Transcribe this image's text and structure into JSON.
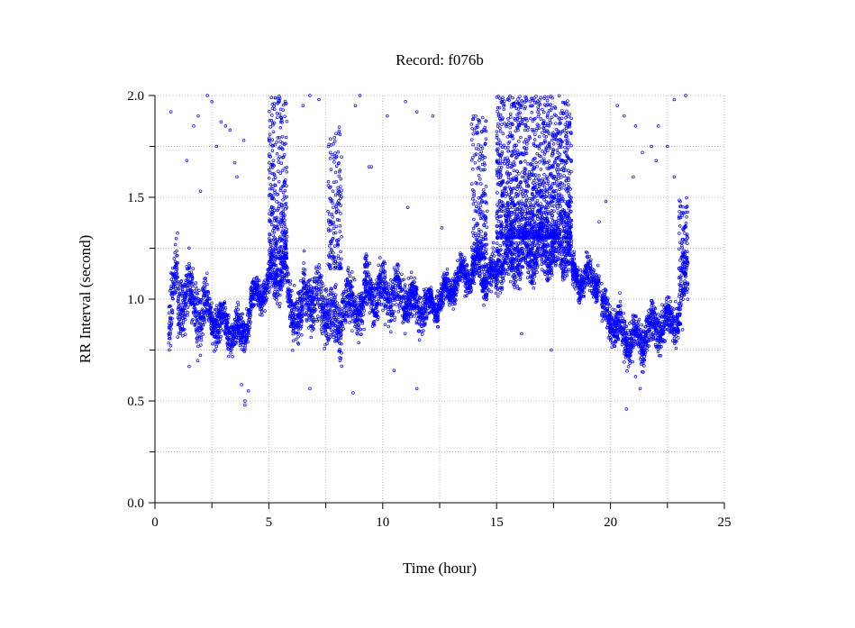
{
  "chart_data": {
    "type": "scatter",
    "title": "Record:  f076b",
    "xlabel": "Time (hour)",
    "ylabel": "RR Interval (second)",
    "xlim": [
      0,
      25
    ],
    "ylim": [
      0.0,
      2.0
    ],
    "x_ticks": [
      "0",
      "5",
      "10",
      "15",
      "20",
      "25"
    ],
    "y_ticks": [
      "0.0",
      "0.5",
      "1.0",
      "1.5",
      "2.0"
    ],
    "grid": true,
    "point_color": "#0000ff",
    "marker": "open-circle",
    "segments": [
      {
        "x": [
          0.6,
          1.0
        ],
        "y": [
          0.88,
          1.15
        ],
        "spread": 0.1
      },
      {
        "x": [
          1.0,
          1.5
        ],
        "y": [
          0.95,
          1.05
        ],
        "spread": 0.12
      },
      {
        "x": [
          1.5,
          2.2
        ],
        "y": [
          1.0,
          0.92
        ],
        "spread": 0.12
      },
      {
        "x": [
          2.2,
          3.0
        ],
        "y": [
          0.95,
          0.85
        ],
        "spread": 0.08
      },
      {
        "x": [
          3.0,
          3.8
        ],
        "y": [
          0.88,
          0.82
        ],
        "spread": 0.07
      },
      {
        "x": [
          3.8,
          4.2
        ],
        "y": [
          0.82,
          0.95
        ],
        "spread": 0.07
      },
      {
        "x": [
          4.2,
          5.0
        ],
        "y": [
          0.98,
          1.08
        ],
        "spread": 0.06
      },
      {
        "x": [
          5.0,
          5.8
        ],
        "y": [
          1.1,
          1.15
        ],
        "spread": 0.08
      },
      {
        "x": [
          5.8,
          6.5
        ],
        "y": [
          1.0,
          0.9
        ],
        "spread": 0.1
      },
      {
        "x": [
          6.5,
          7.5
        ],
        "y": [
          1.05,
          0.95
        ],
        "spread": 0.12
      },
      {
        "x": [
          7.5,
          8.2
        ],
        "y": [
          0.95,
          0.85
        ],
        "spread": 0.12
      },
      {
        "x": [
          8.2,
          9.2
        ],
        "y": [
          1.0,
          0.95
        ],
        "spread": 0.1
      },
      {
        "x": [
          9.2,
          11.0
        ],
        "y": [
          1.05,
          1.0
        ],
        "spread": 0.1
      },
      {
        "x": [
          11.0,
          12.0
        ],
        "y": [
          1.0,
          0.95
        ],
        "spread": 0.08
      },
      {
        "x": [
          12.0,
          13.0
        ],
        "y": [
          0.95,
          1.05
        ],
        "spread": 0.06
      },
      {
        "x": [
          13.0,
          14.0
        ],
        "y": [
          1.08,
          1.15
        ],
        "spread": 0.06
      },
      {
        "x": [
          14.0,
          15.0
        ],
        "y": [
          1.15,
          1.1
        ],
        "spread": 0.08
      },
      {
        "x": [
          15.0,
          18.3
        ],
        "y": [
          1.2,
          1.25
        ],
        "spread": 0.1
      },
      {
        "x": [
          18.3,
          19.5
        ],
        "y": [
          1.1,
          1.1
        ],
        "spread": 0.06
      },
      {
        "x": [
          19.6,
          20.5
        ],
        "y": [
          0.95,
          0.85
        ],
        "spread": 0.08
      },
      {
        "x": [
          20.5,
          21.5
        ],
        "y": [
          0.82,
          0.8
        ],
        "spread": 0.08
      },
      {
        "x": [
          21.5,
          23.0
        ],
        "y": [
          0.85,
          0.9
        ],
        "spread": 0.08
      },
      {
        "x": [
          23.0,
          23.4
        ],
        "y": [
          0.95,
          1.15
        ],
        "spread": 0.12
      }
    ],
    "bursts": [
      {
        "x": [
          5.0,
          5.8
        ],
        "y": [
          1.2,
          2.0
        ],
        "density": 0.9
      },
      {
        "x": [
          7.6,
          8.2
        ],
        "y": [
          1.15,
          1.85
        ],
        "density": 0.6
      },
      {
        "x": [
          13.9,
          14.6
        ],
        "y": [
          1.2,
          1.9
        ],
        "density": 0.7
      },
      {
        "x": [
          15.0,
          18.3
        ],
        "y": [
          1.3,
          2.0
        ],
        "density": 1.0
      },
      {
        "x": [
          23.0,
          23.4
        ],
        "y": [
          1.15,
          1.5
        ],
        "density": 0.4
      }
    ],
    "outliers": [
      {
        "x": 0.7,
        "y": 1.92
      },
      {
        "x": 1.7,
        "y": 1.85
      },
      {
        "x": 1.9,
        "y": 1.9
      },
      {
        "x": 2.3,
        "y": 2.0
      },
      {
        "x": 2.5,
        "y": 1.97
      },
      {
        "x": 2.7,
        "y": 1.75
      },
      {
        "x": 2.9,
        "y": 1.87
      },
      {
        "x": 3.1,
        "y": 1.85
      },
      {
        "x": 3.3,
        "y": 1.83
      },
      {
        "x": 3.5,
        "y": 1.67
      },
      {
        "x": 3.6,
        "y": 1.6
      },
      {
        "x": 3.9,
        "y": 1.78
      },
      {
        "x": 1.4,
        "y": 1.68
      },
      {
        "x": 2.0,
        "y": 1.53
      },
      {
        "x": 1.5,
        "y": 0.67
      },
      {
        "x": 3.8,
        "y": 0.58
      },
      {
        "x": 3.95,
        "y": 0.48
      },
      {
        "x": 3.95,
        "y": 0.5
      },
      {
        "x": 4.1,
        "y": 0.55
      },
      {
        "x": 6.8,
        "y": 0.56
      },
      {
        "x": 8.7,
        "y": 0.54
      },
      {
        "x": 11.5,
        "y": 0.56
      },
      {
        "x": 10.5,
        "y": 0.65
      },
      {
        "x": 6.5,
        "y": 1.95
      },
      {
        "x": 6.8,
        "y": 2.0
      },
      {
        "x": 7.2,
        "y": 1.98
      },
      {
        "x": 8.8,
        "y": 1.95
      },
      {
        "x": 9.0,
        "y": 2.0
      },
      {
        "x": 9.5,
        "y": 1.65
      },
      {
        "x": 10.2,
        "y": 1.9
      },
      {
        "x": 11.0,
        "y": 1.97
      },
      {
        "x": 11.5,
        "y": 1.92
      },
      {
        "x": 11.1,
        "y": 1.45
      },
      {
        "x": 12.6,
        "y": 1.35
      },
      {
        "x": 12.2,
        "y": 1.9
      },
      {
        "x": 20.3,
        "y": 1.95
      },
      {
        "x": 20.6,
        "y": 1.9
      },
      {
        "x": 21.1,
        "y": 1.85
      },
      {
        "x": 21.0,
        "y": 1.6
      },
      {
        "x": 21.4,
        "y": 1.72
      },
      {
        "x": 21.8,
        "y": 1.75
      },
      {
        "x": 22.1,
        "y": 1.85
      },
      {
        "x": 22.5,
        "y": 1.75
      },
      {
        "x": 22.0,
        "y": 1.68
      },
      {
        "x": 22.8,
        "y": 1.6
      },
      {
        "x": 22.8,
        "y": 1.98
      },
      {
        "x": 23.3,
        "y": 2.0
      },
      {
        "x": 20.7,
        "y": 0.46
      },
      {
        "x": 21.3,
        "y": 0.56
      },
      {
        "x": 21.1,
        "y": 0.62
      },
      {
        "x": 17.4,
        "y": 0.75
      },
      {
        "x": 16.1,
        "y": 0.83
      },
      {
        "x": 19.8,
        "y": 1.48
      },
      {
        "x": 19.5,
        "y": 1.38
      },
      {
        "x": 9.4,
        "y": 1.65
      }
    ]
  }
}
